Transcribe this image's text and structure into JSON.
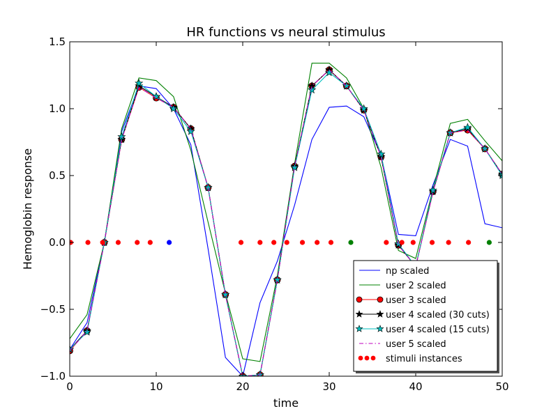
{
  "chart_data": {
    "type": "line",
    "title": "HR functions vs neural stimulus",
    "xlabel": "time",
    "ylabel": "Hemoglobin response",
    "xlim": [
      0,
      50
    ],
    "ylim": [
      -1.0,
      1.5
    ],
    "xticks": [
      0,
      10,
      20,
      30,
      40,
      50
    ],
    "yticks": [
      -1.0,
      -0.5,
      0.0,
      0.5,
      1.0,
      1.5
    ],
    "xtick_labels": [
      "0",
      "10",
      "20",
      "30",
      "40",
      "50"
    ],
    "ytick_labels": [
      "−1.0",
      "−0.5",
      "0.0",
      "0.5",
      "1.0",
      "1.5"
    ],
    "grid": false,
    "legend_position": "lower-right",
    "series": [
      {
        "name": "np scaled",
        "color": "#0000ff",
        "line": "solid",
        "marker": "none",
        "x": [
          0,
          2,
          4,
          6,
          8,
          10,
          12,
          14,
          16,
          18,
          20,
          22,
          24,
          26,
          28,
          30,
          32,
          34,
          36,
          38,
          40,
          42,
          44,
          46,
          48,
          50
        ],
        "y": [
          -0.8,
          -0.6,
          0.0,
          0.83,
          1.17,
          1.15,
          1.0,
          0.73,
          -0.05,
          -0.86,
          -1.0,
          -0.45,
          -0.14,
          0.28,
          0.77,
          1.01,
          1.02,
          0.94,
          0.65,
          0.06,
          0.05,
          0.43,
          0.77,
          0.72,
          0.14,
          0.11
        ]
      },
      {
        "name": "user 2 scaled",
        "color": "#008000",
        "line": "solid",
        "marker": "none",
        "x": [
          0,
          2,
          4,
          6,
          8,
          10,
          12,
          14,
          16,
          18,
          20,
          22,
          24,
          26,
          28,
          30,
          32,
          34,
          36,
          38,
          40,
          42,
          44,
          46,
          48,
          50
        ],
        "y": [
          -0.72,
          -0.54,
          0.0,
          0.85,
          1.23,
          1.21,
          1.09,
          0.69,
          0.15,
          -0.38,
          -0.87,
          -0.89,
          -0.25,
          0.59,
          1.34,
          1.34,
          1.23,
          1.0,
          0.56,
          -0.06,
          -0.12,
          0.4,
          0.89,
          0.92,
          0.76,
          0.61
        ]
      },
      {
        "name": "user 3 scaled",
        "color": "#ff0000",
        "line": "solid",
        "marker": "circle",
        "x": [
          0,
          2,
          4,
          6,
          8,
          10,
          12,
          14,
          16,
          18,
          20,
          22,
          24,
          26,
          28,
          30,
          32,
          34,
          36,
          38,
          40,
          42,
          44,
          46,
          48,
          50
        ],
        "y": [
          -0.81,
          -0.66,
          0.0,
          0.77,
          1.16,
          1.08,
          1.01,
          0.85,
          0.41,
          -0.39,
          -1.0,
          -0.99,
          -0.28,
          0.57,
          1.17,
          1.29,
          1.17,
          0.99,
          0.64,
          -0.02,
          -0.18,
          0.38,
          0.82,
          0.84,
          0.7,
          0.51
        ]
      },
      {
        "name": "user 4 scaled (30 cuts)",
        "color": "#000000",
        "line": "solid",
        "marker": "star",
        "x": [
          0,
          2,
          4,
          6,
          8,
          10,
          12,
          14,
          16,
          18,
          20,
          22,
          24,
          26,
          28,
          30,
          32,
          34,
          36,
          38,
          40,
          42,
          44,
          46,
          48,
          50
        ],
        "y": [
          -0.8,
          -0.66,
          0.0,
          0.77,
          1.17,
          1.09,
          1.01,
          0.85,
          0.41,
          -0.39,
          -1.0,
          -0.99,
          -0.28,
          0.57,
          1.17,
          1.29,
          1.17,
          0.99,
          0.64,
          -0.02,
          -0.18,
          0.38,
          0.82,
          0.85,
          0.7,
          0.51
        ]
      },
      {
        "name": "user 4 scaled (15 cuts)",
        "color": "#00bfbf",
        "line": "solid",
        "marker": "star",
        "x": [
          0,
          2,
          4,
          6,
          8,
          10,
          12,
          14,
          16,
          18,
          20,
          22,
          24,
          26,
          28,
          30,
          32,
          34,
          36,
          38,
          40,
          42,
          44,
          46,
          48,
          50
        ],
        "y": [
          -0.8,
          -0.67,
          0.0,
          0.79,
          1.19,
          1.09,
          1.0,
          0.83,
          0.41,
          -0.39,
          -1.0,
          -0.99,
          -0.28,
          0.56,
          1.14,
          1.27,
          1.17,
          1.0,
          0.66,
          -0.01,
          -0.18,
          0.39,
          0.82,
          0.86,
          0.7,
          0.5
        ]
      },
      {
        "name": "user 5 scaled",
        "color": "#bf00bf",
        "line": "dashdot",
        "marker": "none",
        "x": [
          0,
          2,
          4,
          6,
          8,
          10,
          12,
          14,
          16,
          18,
          20,
          22,
          24,
          26,
          28,
          30,
          32,
          34,
          36,
          38,
          40,
          42,
          44,
          46,
          48,
          50
        ],
        "y": [
          -0.81,
          -0.66,
          0.0,
          0.77,
          1.16,
          1.08,
          1.01,
          0.85,
          0.41,
          -0.39,
          -1.0,
          -0.99,
          -0.28,
          0.57,
          1.17,
          1.29,
          1.17,
          0.99,
          0.64,
          -0.02,
          -0.18,
          0.38,
          0.82,
          0.84,
          0.7,
          0.51
        ]
      }
    ],
    "stimuli": {
      "name": "stimuli instances",
      "y": 0.0,
      "points": [
        {
          "x": 0.1,
          "color": "#ff0000"
        },
        {
          "x": 2.1,
          "color": "#ff0000"
        },
        {
          "x": 3.8,
          "color": "#ff0000"
        },
        {
          "x": 5.6,
          "color": "#ff0000"
        },
        {
          "x": 7.8,
          "color": "#ff0000"
        },
        {
          "x": 9.3,
          "color": "#ff0000"
        },
        {
          "x": 11.5,
          "color": "#0000ff"
        },
        {
          "x": 19.8,
          "color": "#ff0000"
        },
        {
          "x": 22.0,
          "color": "#ff0000"
        },
        {
          "x": 23.6,
          "color": "#ff0000"
        },
        {
          "x": 25.1,
          "color": "#ff0000"
        },
        {
          "x": 26.9,
          "color": "#ff0000"
        },
        {
          "x": 28.6,
          "color": "#ff0000"
        },
        {
          "x": 30.2,
          "color": "#ff0000"
        },
        {
          "x": 32.5,
          "color": "#008000"
        },
        {
          "x": 36.6,
          "color": "#ff0000"
        },
        {
          "x": 38.4,
          "color": "#ff0000"
        },
        {
          "x": 39.7,
          "color": "#ff0000"
        },
        {
          "x": 41.9,
          "color": "#ff0000"
        },
        {
          "x": 43.8,
          "color": "#ff0000"
        },
        {
          "x": 46.1,
          "color": "#ff0000"
        },
        {
          "x": 48.5,
          "color": "#008000"
        }
      ]
    }
  }
}
